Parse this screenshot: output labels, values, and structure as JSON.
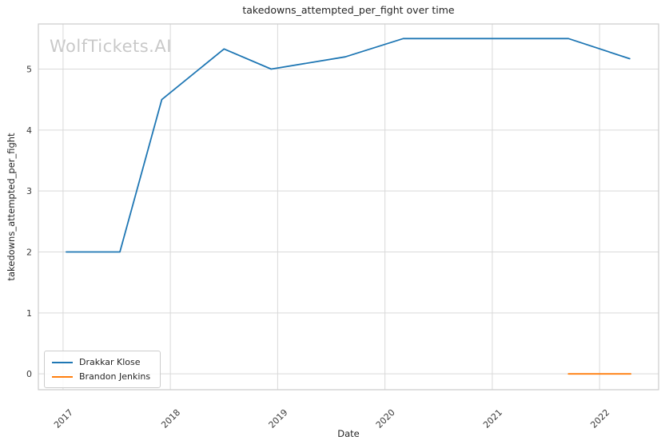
{
  "watermark": "WolfTickets.AI",
  "chart_data": {
    "type": "line",
    "title": "takedowns_attempted_per_fight over time",
    "xlabel": "Date",
    "ylabel": "takedowns_attempted_per_fight",
    "xlim": [
      2016.77,
      2022.55
    ],
    "ylim": [
      -0.26,
      5.74
    ],
    "x_ticks": [
      2017,
      2018,
      2019,
      2020,
      2021,
      2022
    ],
    "y_ticks": [
      0,
      1,
      2,
      3,
      4,
      5
    ],
    "grid": true,
    "legend_position": "lower left",
    "series": [
      {
        "name": "Drakkar Klose",
        "color": "#1f77b4",
        "x": [
          2017.03,
          2017.53,
          2017.92,
          2018.5,
          2018.94,
          2019.63,
          2020.17,
          2021.71,
          2022.28
        ],
        "y": [
          2.0,
          2.0,
          4.5,
          5.33,
          5.0,
          5.2,
          5.5,
          5.5,
          5.17
        ]
      },
      {
        "name": "Brandon Jenkins",
        "color": "#ff7f0e",
        "x": [
          2021.71,
          2022.29
        ],
        "y": [
          0.0,
          0.0
        ]
      }
    ]
  },
  "style_colors": {
    "grid": "#d9d9d9",
    "spine": "#cccccc",
    "tick_text": "#3a3a3a",
    "watermark": "#c9c9c9"
  }
}
